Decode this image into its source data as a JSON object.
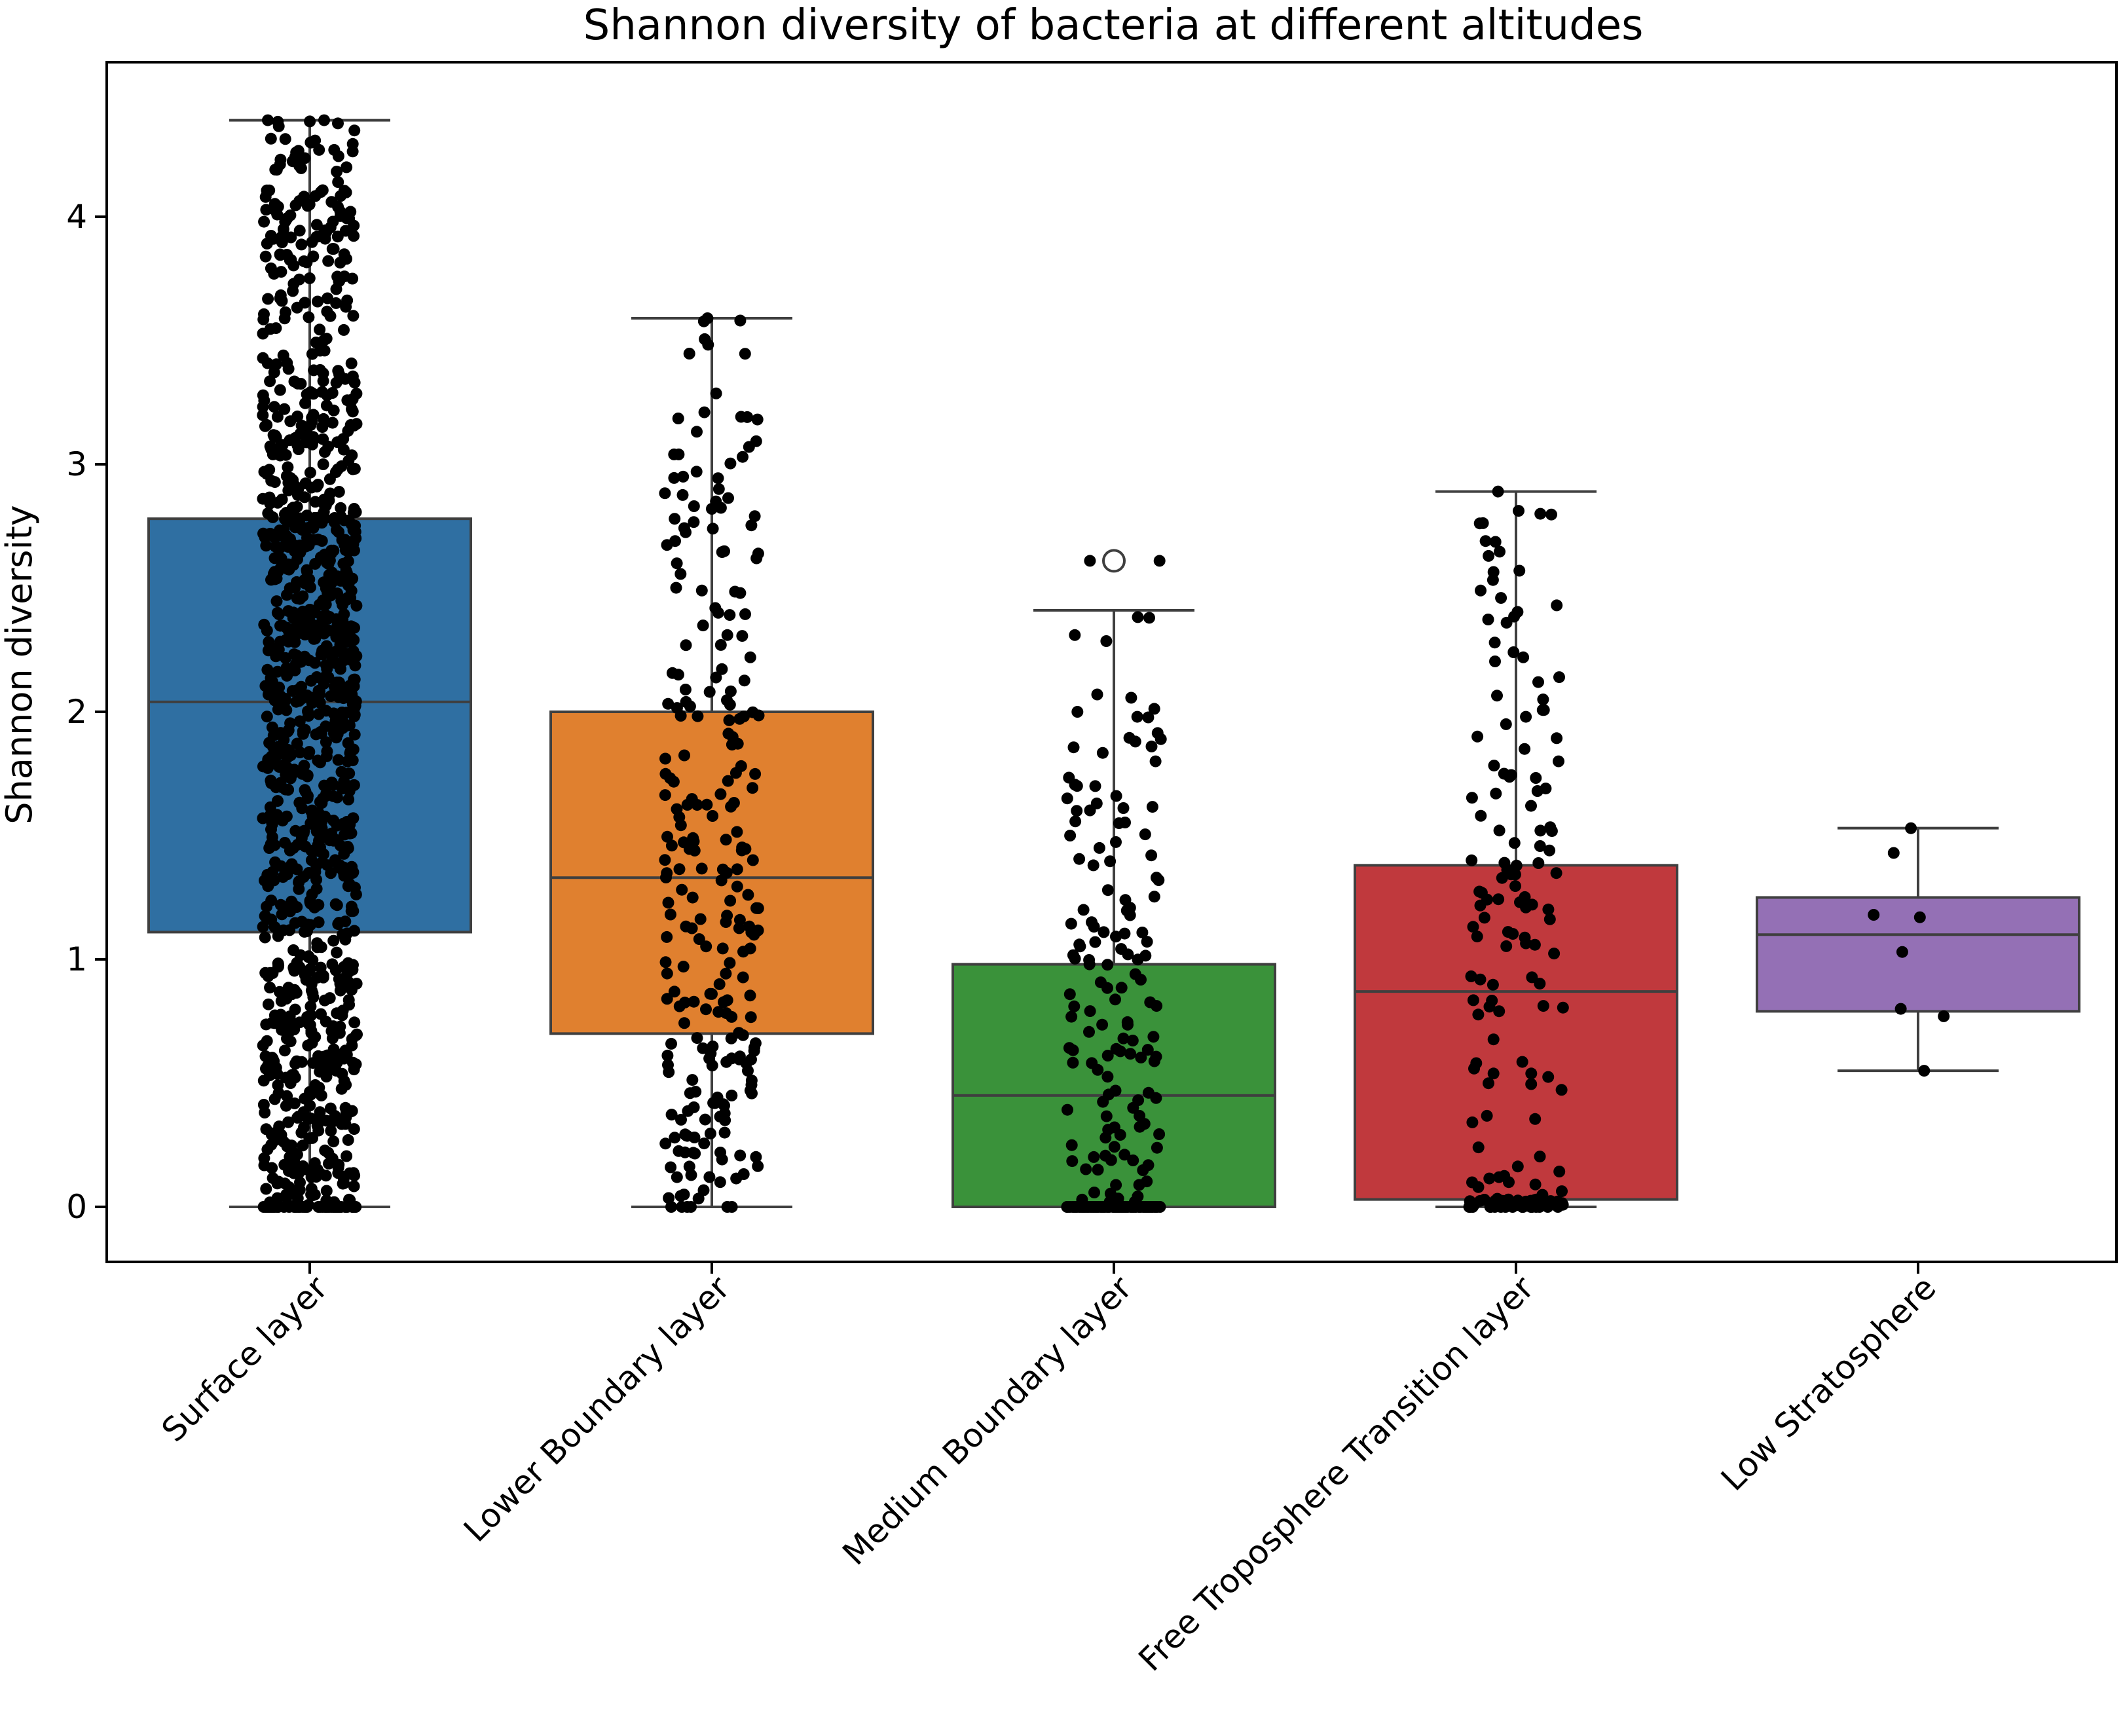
{
  "chart_data": {
    "type": "box",
    "title": "Shannon diversity of bacteria at different altitudes",
    "xlabel": "",
    "ylabel": "Shannon diversity",
    "ylim": [
      -0.22,
      4.62
    ],
    "y_ticks": [
      0,
      1,
      2,
      3,
      4
    ],
    "grid": false,
    "legend": "none",
    "overlay": "black jittered points (strip plot)",
    "categories": [
      "Surface layer",
      "Lower Boundary layer",
      "Medium Boundary layer",
      "Free Troposphere Transition layer",
      "Low Stratosphere"
    ],
    "boxes": [
      {
        "category": "Surface layer",
        "color": "#2f6fa2",
        "whisker_low": 0.0,
        "q1": 1.11,
        "median": 2.04,
        "q3": 2.78,
        "whisker_high": 4.39,
        "outliers": []
      },
      {
        "category": "Lower Boundary layer",
        "color": "#e0802f",
        "whisker_low": 0.0,
        "q1": 0.7,
        "median": 1.33,
        "q3": 2.0,
        "whisker_high": 3.59,
        "outliers": []
      },
      {
        "category": "Medium Boundary layer",
        "color": "#3a923a",
        "whisker_low": 0.0,
        "q1": 0.0,
        "median": 0.45,
        "q3": 0.98,
        "whisker_high": 2.41,
        "outliers": [
          2.61
        ]
      },
      {
        "category": "Free Troposphere Transition layer",
        "color": "#c0393d",
        "whisker_low": 0.0,
        "q1": 0.03,
        "median": 0.87,
        "q3": 1.38,
        "whisker_high": 2.89,
        "outliers": []
      },
      {
        "category": "Low Stratosphere",
        "color": "#9470b5",
        "whisker_low": 0.55,
        "q1": 0.79,
        "median": 1.1,
        "q3": 1.25,
        "whisker_high": 1.53,
        "outliers": []
      }
    ],
    "points": [
      {
        "category": "Surface layer",
        "count": 1200,
        "zeros": 60,
        "values": [
          4.39,
          4.39,
          4.27,
          4.26,
          4.2,
          4.19,
          4.08,
          4.06,
          4.04,
          4.02,
          3.98,
          3.92,
          3.87,
          3.84,
          3.83,
          3.82,
          3.75,
          3.7,
          3.66,
          3.6,
          3.55,
          3.5,
          3.44,
          3.38,
          3.3,
          3.25,
          3.2,
          3.14,
          3.08,
          3.0,
          0.55,
          0.5,
          0.45,
          0.4,
          0.36,
          0.3,
          0.27,
          0.22,
          0.17,
          0.12,
          0.08,
          0.05
        ]
      },
      {
        "category": "Lower Boundary layer",
        "count": 260,
        "zeros": 6,
        "values": [
          3.59,
          3.21,
          3.07,
          3.04,
          2.97,
          2.95,
          2.9,
          2.85,
          2.82,
          2.78,
          2.74,
          2.69,
          2.62,
          2.6,
          2.49,
          2.48,
          2.4,
          2.31,
          2.27,
          2.22,
          2.15,
          2.09,
          2.04,
          0.62,
          0.55,
          0.47,
          0.45,
          0.42,
          0.35,
          0.3,
          0.28,
          0.22,
          0.16,
          0.12,
          0.1,
          0.05
        ]
      },
      {
        "category": "Medium Boundary layer",
        "count": 230,
        "zeros": 35,
        "values": [
          2.61,
          2.61,
          2.38,
          2.31,
          2.07,
          2.0,
          1.98,
          1.88,
          1.86,
          1.8,
          1.7,
          1.66,
          1.63,
          1.6,
          1.55,
          1.5,
          1.45,
          1.42,
          1.38,
          1.32,
          1.28,
          1.24,
          1.2,
          1.15,
          1.11,
          1.06,
          1.02
        ]
      },
      {
        "category": "Free Troposphere Transition layer",
        "count": 180,
        "zeros": 20,
        "values": [
          2.89,
          2.8,
          2.69,
          2.63,
          2.57,
          2.49,
          2.46,
          2.36,
          2.28,
          2.22,
          2.14,
          2.12,
          2.05,
          1.98,
          1.95,
          1.9,
          1.85,
          1.8,
          1.75,
          1.68,
          1.62,
          1.58,
          1.52,
          1.47,
          1.44,
          1.4,
          1.39,
          0.12,
          0.1,
          0.08
        ]
      },
      {
        "category": "Low Stratosphere",
        "count": 8,
        "zeros": 0,
        "values": [
          1.53,
          1.43,
          1.18,
          1.17,
          1.03,
          0.8,
          0.77,
          0.55
        ]
      }
    ]
  }
}
